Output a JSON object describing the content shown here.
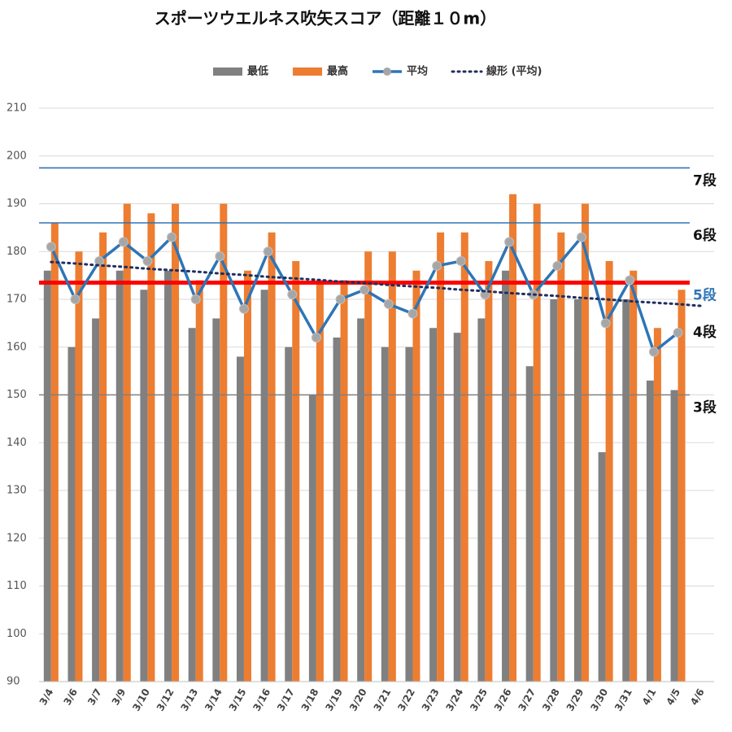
{
  "chart_data": {
    "type": "bar",
    "title": "スポーツウエルネス吹矢スコア（距離１０m）",
    "categories": [
      "3/4",
      "3/6",
      "3/7",
      "3/9",
      "3/10",
      "3/12",
      "3/13",
      "3/14",
      "3/15",
      "3/16",
      "3/17",
      "3/18",
      "3/19",
      "3/20",
      "3/21",
      "3/22",
      "3/23",
      "3/24",
      "3/25",
      "3/26",
      "3/27",
      "3/28",
      "3/29",
      "3/30",
      "3/31",
      "4/1",
      "4/5",
      "4/6"
    ],
    "series": [
      {
        "name": "最低",
        "color": "#808080",
        "kind": "bar",
        "values": [
          176,
          160,
          166,
          176,
          172,
          176,
          164,
          166,
          158,
          172,
          160,
          150,
          162,
          166,
          160,
          160,
          164,
          163,
          166,
          176,
          156,
          170,
          170,
          138,
          170,
          153,
          151,
          null
        ]
      },
      {
        "name": "最高",
        "color": "#ed7d31",
        "kind": "bar",
        "values": [
          186,
          180,
          184,
          190,
          188,
          190,
          174,
          190,
          176,
          184,
          178,
          174,
          174,
          180,
          180,
          176,
          184,
          184,
          178,
          192,
          190,
          184,
          190,
          178,
          176,
          164,
          172,
          null
        ]
      },
      {
        "name": "平均",
        "color": "#2e75b6",
        "kind": "line",
        "values": [
          181,
          170,
          178,
          182,
          178,
          183,
          170,
          179,
          168,
          180,
          171,
          162,
          170,
          172,
          169,
          167,
          177,
          178,
          171,
          182,
          171,
          177,
          183,
          165,
          174,
          159,
          163,
          null
        ]
      },
      {
        "name": "線形 (平均)",
        "color": "#1f2f5f",
        "kind": "trend",
        "values": [
          177.8,
          177.5,
          177.1,
          176.8,
          176.4,
          176.1,
          175.8,
          175.4,
          175.1,
          174.7,
          174.4,
          174.1,
          173.7,
          173.4,
          173.0,
          172.7,
          172.4,
          172.0,
          171.7,
          171.3,
          171.0,
          170.7,
          170.3,
          170.0,
          169.6,
          169.3,
          169.0,
          168.6
        ]
      }
    ],
    "ylim": [
      90,
      210
    ],
    "yticks": [
      90,
      100,
      110,
      120,
      130,
      140,
      150,
      160,
      170,
      180,
      190,
      200,
      210
    ],
    "grid": true,
    "legend": "top",
    "reference_lines": [
      {
        "label": "7段",
        "value": 197.5,
        "color": "#2e75b6",
        "label_color": "#111"
      },
      {
        "label": "6段",
        "value": 186,
        "color": "#2e75b6",
        "label_color": "#111"
      },
      {
        "label": "5段",
        "value": 173.5,
        "color": "#ff0000",
        "label_color": "#2e75b6"
      },
      {
        "label": "4段",
        "value": 163,
        "color": null,
        "label_color": "#111"
      },
      {
        "label": "3段",
        "value": 150,
        "color": "#808080",
        "label_color": "#111"
      }
    ]
  }
}
